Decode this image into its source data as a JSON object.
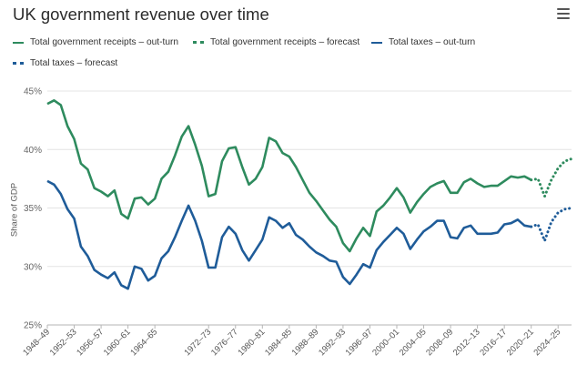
{
  "header": {
    "title": "UK government revenue over time",
    "menu_icon": "hamburger-menu-icon"
  },
  "chart_data": {
    "type": "line",
    "title": "UK government revenue over time",
    "xlabel": "",
    "ylabel": "Share of GDP",
    "ylim": [
      25,
      45
    ],
    "yticks": [
      "25%",
      "30%",
      "35%",
      "40%",
      "45%"
    ],
    "xtick_labels": [
      "1948–49",
      "1952–53",
      "1956–57",
      "1960–61",
      "1964–65",
      "1972–73",
      "1976–77",
      "1980–81",
      "1984–85",
      "1988–89",
      "1992–93",
      "1996–97",
      "2000–01",
      "2004–05",
      "2008–09",
      "2012–13",
      "2016–17",
      "2020–21",
      "2024–25"
    ],
    "xtick_years": [
      1948,
      1952,
      1956,
      1960,
      1964,
      1972,
      1976,
      1980,
      1984,
      1988,
      1992,
      1996,
      2000,
      2004,
      2008,
      2012,
      2016,
      2020,
      2024
    ],
    "x_range": [
      1948,
      2026
    ],
    "colors": {
      "green": "#2e8b5e",
      "blue": "#1f5c99"
    },
    "series": [
      {
        "name": "Total government receipts – out-turn",
        "style": "solid",
        "color": "#2e8b5e",
        "x": [
          1948,
          1949,
          1950,
          1951,
          1952,
          1953,
          1954,
          1955,
          1956,
          1957,
          1958,
          1959,
          1960,
          1961,
          1962,
          1963,
          1964,
          1965,
          1966,
          1967,
          1968,
          1969,
          1970,
          1971,
          1972,
          1973,
          1974,
          1975,
          1976,
          1977,
          1978,
          1979,
          1980,
          1981,
          1982,
          1983,
          1984,
          1985,
          1986,
          1987,
          1988,
          1989,
          1990,
          1991,
          1992,
          1993,
          1994,
          1995,
          1996,
          1997,
          1998,
          1999,
          2000,
          2001,
          2002,
          2003,
          2004,
          2005,
          2006,
          2007,
          2008,
          2009,
          2010,
          2011,
          2012,
          2013,
          2014,
          2015,
          2016,
          2017,
          2018,
          2019,
          2020
        ],
        "values": [
          43.9,
          44.2,
          43.8,
          42.0,
          40.9,
          38.8,
          38.3,
          36.7,
          36.4,
          36.0,
          36.5,
          34.5,
          34.1,
          35.8,
          35.9,
          35.3,
          35.8,
          37.5,
          38.1,
          39.5,
          41.1,
          42.0,
          40.4,
          38.6,
          36.0,
          36.2,
          39.0,
          40.1,
          40.2,
          38.5,
          37.0,
          37.5,
          38.5,
          41.0,
          40.7,
          39.7,
          39.4,
          38.5,
          37.4,
          36.3,
          35.6,
          34.8,
          34.0,
          33.4,
          32.0,
          31.3,
          32.4,
          33.3,
          32.6,
          34.7,
          35.2,
          35.9,
          36.7,
          35.9,
          34.6,
          35.5,
          36.2,
          36.8,
          37.1,
          37.3,
          36.3,
          36.3,
          37.2,
          37.5,
          37.1,
          36.8,
          36.9,
          36.9,
          37.3,
          37.7,
          37.6,
          37.7,
          37.4
        ]
      },
      {
        "name": "Total government receipts – forecast",
        "style": "dotted",
        "color": "#2e8b5e",
        "x": [
          2020,
          2021,
          2022,
          2023,
          2024,
          2025,
          2026
        ],
        "values": [
          37.4,
          37.5,
          36.0,
          37.4,
          38.4,
          39.0,
          39.2
        ]
      },
      {
        "name": "Total taxes – out-turn",
        "style": "solid",
        "color": "#1f5c99",
        "x": [
          1948,
          1949,
          1950,
          1951,
          1952,
          1953,
          1954,
          1955,
          1956,
          1957,
          1958,
          1959,
          1960,
          1961,
          1962,
          1963,
          1964,
          1965,
          1966,
          1967,
          1968,
          1969,
          1970,
          1971,
          1972,
          1973,
          1974,
          1975,
          1976,
          1977,
          1978,
          1979,
          1980,
          1981,
          1982,
          1983,
          1984,
          1985,
          1986,
          1987,
          1988,
          1989,
          1990,
          1991,
          1992,
          1993,
          1994,
          1995,
          1996,
          1997,
          1998,
          1999,
          2000,
          2001,
          2002,
          2003,
          2004,
          2005,
          2006,
          2007,
          2008,
          2009,
          2010,
          2011,
          2012,
          2013,
          2014,
          2015,
          2016,
          2017,
          2018,
          2019,
          2020
        ],
        "values": [
          37.3,
          37.0,
          36.2,
          34.9,
          34.1,
          31.7,
          30.9,
          29.7,
          29.3,
          29.0,
          29.5,
          28.4,
          28.1,
          30.0,
          29.8,
          28.8,
          29.2,
          30.7,
          31.3,
          32.5,
          33.9,
          35.2,
          33.9,
          32.2,
          29.9,
          29.9,
          32.5,
          33.4,
          32.8,
          31.4,
          30.5,
          31.4,
          32.3,
          34.2,
          33.9,
          33.3,
          33.7,
          32.7,
          32.3,
          31.7,
          31.2,
          30.9,
          30.5,
          30.4,
          29.1,
          28.5,
          29.3,
          30.2,
          29.9,
          31.4,
          32.1,
          32.7,
          33.3,
          32.8,
          31.5,
          32.3,
          33.0,
          33.4,
          33.9,
          33.9,
          32.5,
          32.4,
          33.3,
          33.5,
          32.8,
          32.8,
          32.8,
          32.9,
          33.6,
          33.7,
          34.0,
          33.5,
          33.4
        ]
      },
      {
        "name": "Total taxes – forecast",
        "style": "dotted",
        "color": "#1f5c99",
        "x": [
          2020,
          2021,
          2022,
          2023,
          2024,
          2025,
          2026
        ],
        "values": [
          33.4,
          33.6,
          32.2,
          33.8,
          34.6,
          34.9,
          35.0
        ]
      }
    ],
    "legend_position": "top",
    "grid": "horizontal"
  }
}
